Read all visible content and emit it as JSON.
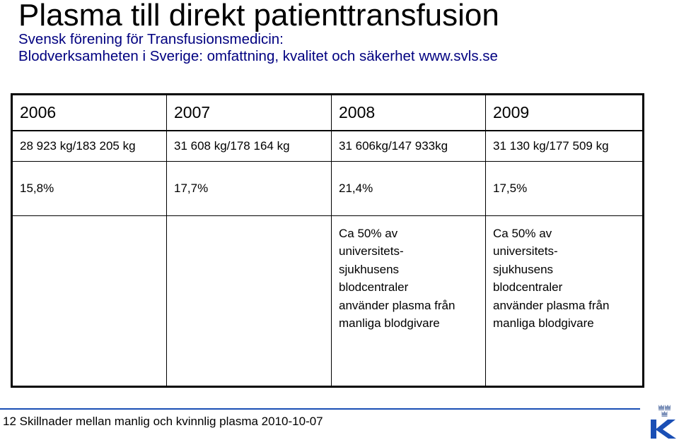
{
  "slide": {
    "title": "Plasma till direkt patienttransfusion",
    "source_line1": "Svensk förening för Transfusionsmedicin:",
    "source_line2": "Blodverksamheten i Sverige: omfattning, kvalitet och säkerhet www.svls.se"
  },
  "table": {
    "headers": [
      "2006",
      "2007",
      "2008",
      "2009"
    ],
    "mass_row": [
      "28 923 kg/183 205 kg",
      "31 608 kg/178 164 kg",
      "31 606kg/147 933kg",
      "31 130 kg/177 509 kg"
    ],
    "percent_row": [
      "15,8%",
      "17,7%",
      "21,4%",
      "17,5%"
    ],
    "note_row": [
      "",
      "",
      [
        "Ca 50% av",
        "universitets-",
        "sjukhusens",
        "blodcentraler",
        "använder plasma från",
        "manliga blodgivare"
      ],
      [
        "Ca 50% av",
        "universitets-",
        "sjukhusens",
        "blodcentraler",
        "använder plasma från",
        "manliga blodgivare"
      ]
    ]
  },
  "footer": {
    "text": "12 Skillnader mellan manlig och kvinnlig plasma 2010-10-07"
  },
  "logo": {
    "icon": "crown-k-logo",
    "letter": "K",
    "color": "#1a4fb5"
  }
}
